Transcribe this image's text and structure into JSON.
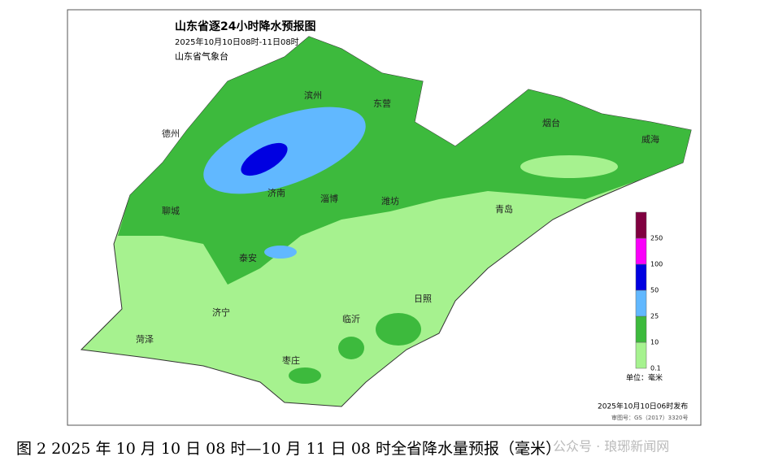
{
  "header": {
    "title": "山东省逐24小时降水预报图",
    "subtitle": "2025年10月10日08时-11日08时",
    "issuer": "山东省气象台"
  },
  "cities": [
    {
      "label": "滨州"
    },
    {
      "label": "东营"
    },
    {
      "label": "德州"
    },
    {
      "label": "烟台"
    },
    {
      "label": "威海"
    },
    {
      "label": "济南"
    },
    {
      "label": "淄博"
    },
    {
      "label": "潍坊"
    },
    {
      "label": "聊城"
    },
    {
      "label": "青岛"
    },
    {
      "label": "泰安"
    },
    {
      "label": "济宁"
    },
    {
      "label": "临沂"
    },
    {
      "label": "日照"
    },
    {
      "label": "菏泽"
    },
    {
      "label": "枣庄"
    }
  ],
  "legend": {
    "levels": [
      0.1,
      10,
      25,
      50,
      100,
      250
    ],
    "colors": [
      "#a6f28f",
      "#3dba3d",
      "#61b8ff",
      "#0000e1",
      "#fa00fa",
      "#800040"
    ],
    "unit": "单位：毫米"
  },
  "footer": {
    "issued": "2025年10月10日06时发布",
    "approval": "审图号：GS（2017）3320号"
  },
  "caption": "图 2 2025 年 10 月 10 日 08 时—10 月 11 日 08 时全省降水量预报（毫米）",
  "watermark": "公众号 · 琅琊新闻网"
}
